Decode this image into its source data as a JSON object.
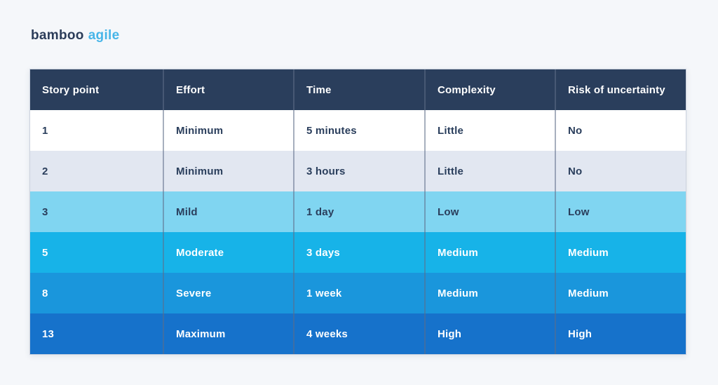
{
  "page": {
    "background": "#f5f7fa"
  },
  "logo": {
    "text_dark": "bamboo",
    "text_accent": "agile",
    "color_dark": "#2b3c59",
    "color_accent": "#47b5e8"
  },
  "chart_data": {
    "type": "table",
    "columns": [
      "Story point",
      "Effort",
      "Time",
      "Complexity",
      "Risk of uncertainty"
    ],
    "header_bg": "#2a3e5c",
    "header_text_color": "#ffffff",
    "divider_color": "rgba(94,110,136,0.55)",
    "rows": [
      {
        "cells": [
          "1",
          "Minimum",
          "5 minutes",
          "Little",
          "No"
        ],
        "bg": "#ffffff",
        "text_color": "#2a3e5c"
      },
      {
        "cells": [
          "2",
          "Minimum",
          "3 hours",
          "Little",
          "No"
        ],
        "bg": "#e2e7f1",
        "text_color": "#2a3e5c"
      },
      {
        "cells": [
          "3",
          "Mild",
          "1 day",
          "Low",
          "Low"
        ],
        "bg": "#80d5f1",
        "text_color": "#2a3e5c"
      },
      {
        "cells": [
          "5",
          "Moderate",
          "3 days",
          "Medium",
          "Medium"
        ],
        "bg": "#17b3e8",
        "text_color": "#ffffff"
      },
      {
        "cells": [
          "8",
          "Severe",
          "1 week",
          "Medium",
          "Medium"
        ],
        "bg": "#1a96dc",
        "text_color": "#ffffff"
      },
      {
        "cells": [
          "13",
          "Maximum",
          "4 weeks",
          "High",
          "High"
        ],
        "bg": "#1672cb",
        "text_color": "#ffffff"
      }
    ]
  }
}
